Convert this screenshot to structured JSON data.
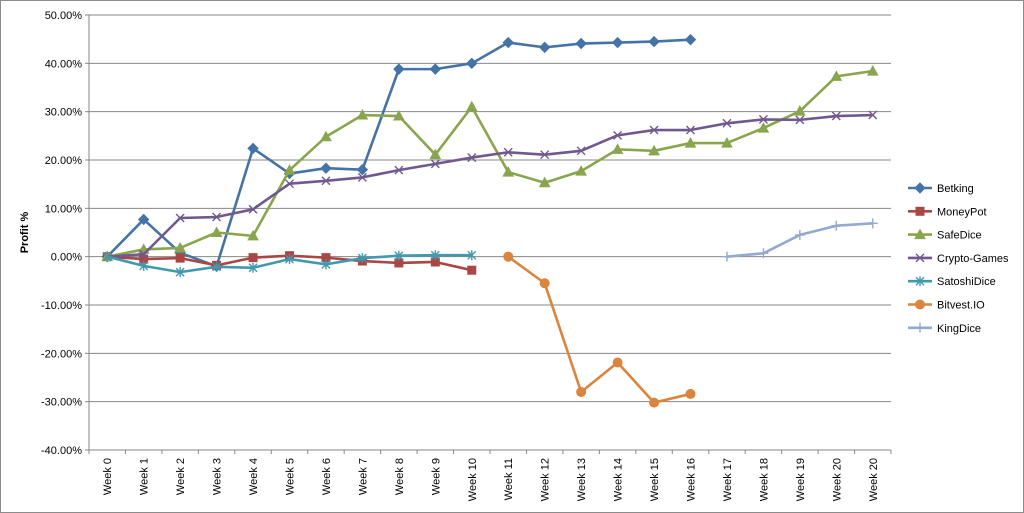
{
  "chart_data": {
    "type": "line",
    "title": "",
    "xlabel": "",
    "ylabel": "Profit %",
    "ylim": [
      -40,
      50
    ],
    "ytick_step": 10,
    "ytick_format": "percent_2dp",
    "grid": "horizontal",
    "legend_position": "right",
    "categories": [
      "Week 0",
      "Week 1",
      "Week 2",
      "Week 3",
      "Week 4",
      "Week 5",
      "Week 6",
      "Week 7",
      "Week 8",
      "Week 9",
      "Week 10",
      "Week 11",
      "Week 12",
      "Week 13",
      "Week 14",
      "Week 15",
      "Week 16",
      "Week 17",
      "Week 18",
      "Week 19",
      "Week 20",
      "Week 20"
    ],
    "series": [
      {
        "name": "Betking",
        "color": "#4572A7",
        "marker": "diamond",
        "values": [
          0,
          7.7,
          0.8,
          -2.0,
          22.4,
          17.2,
          18.3,
          18.0,
          38.8,
          38.8,
          40.0,
          44.3,
          43.3,
          44.1,
          44.3,
          44.5,
          44.9,
          null,
          null,
          null,
          null,
          null
        ]
      },
      {
        "name": "MoneyPot",
        "color": "#AA4643",
        "marker": "square",
        "values": [
          0,
          -0.5,
          -0.3,
          -1.8,
          -0.2,
          0.2,
          -0.2,
          -0.9,
          -1.3,
          -1.1,
          -2.8,
          null,
          null,
          null,
          null,
          null,
          null,
          null,
          null,
          null,
          null,
          null
        ]
      },
      {
        "name": "SafeDice",
        "color": "#89A54E",
        "marker": "triangle",
        "values": [
          0,
          1.5,
          1.8,
          5.0,
          4.3,
          17.9,
          24.8,
          29.3,
          29.1,
          21.1,
          31.0,
          17.5,
          15.3,
          17.7,
          22.2,
          21.9,
          23.5,
          23.5,
          26.6,
          30.1,
          37.3,
          38.4
        ]
      },
      {
        "name": "Crypto-Games",
        "color": "#71588F",
        "marker": "x",
        "values": [
          0,
          0.5,
          8.0,
          8.2,
          9.8,
          15.1,
          15.7,
          16.4,
          17.9,
          19.2,
          20.5,
          21.6,
          21.1,
          21.9,
          25.1,
          26.2,
          26.2,
          27.6,
          28.4,
          28.3,
          29.1,
          29.3
        ]
      },
      {
        "name": "SatoshiDice",
        "color": "#4198AF",
        "marker": "star",
        "values": [
          0,
          -1.9,
          -3.2,
          -2.1,
          -2.3,
          -0.5,
          -1.6,
          -0.3,
          0.2,
          0.3,
          0.3,
          null,
          null,
          null,
          null,
          null,
          null,
          null,
          null,
          null,
          null,
          null
        ]
      },
      {
        "name": "Bitvest.IO",
        "color": "#DB843D",
        "marker": "circle",
        "values": [
          null,
          null,
          null,
          null,
          null,
          null,
          null,
          null,
          null,
          null,
          null,
          0,
          -5.5,
          -28.0,
          -21.9,
          -30.2,
          -28.4,
          null,
          null,
          null,
          null,
          null
        ]
      },
      {
        "name": "KingDice",
        "color": "#93A9CF",
        "marker": "plus",
        "values": [
          null,
          null,
          null,
          null,
          null,
          null,
          null,
          null,
          null,
          null,
          null,
          null,
          null,
          null,
          null,
          null,
          null,
          0,
          0.7,
          4.5,
          6.4,
          6.9
        ]
      }
    ]
  }
}
